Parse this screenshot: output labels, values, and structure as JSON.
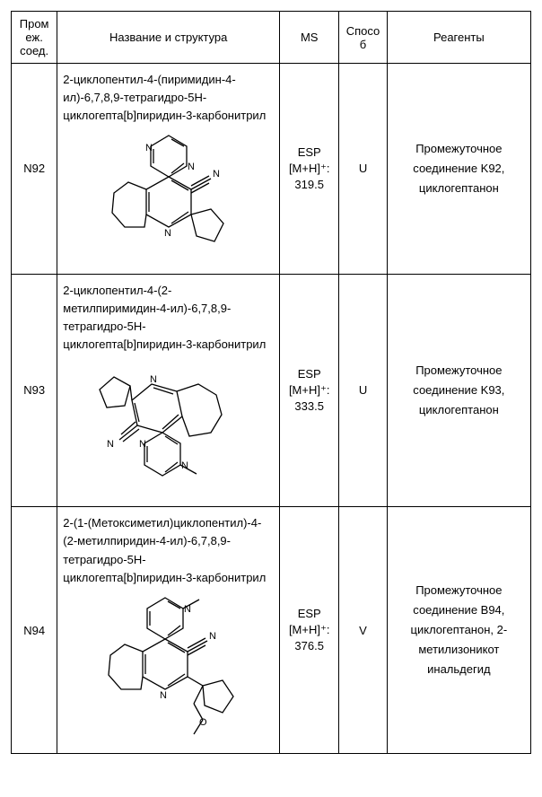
{
  "header": {
    "id": "Пром\nеж.\nсоед.",
    "name": "Название и структура",
    "ms": "MS",
    "method": "Спосо\nб",
    "reagents": "Реагенты"
  },
  "rows": [
    {
      "id": "N92",
      "name": "2-циклопентил-4-(пиримидин-4-ил)-6,7,8,9-тетрагидро-5H-циклогепта[b]пиридин-3-карбонитрил",
      "ms_label": "ESP",
      "ms_ion": "[M+H]⁺:",
      "ms_value": "319.5",
      "method": "U",
      "reagents": "Промежуточное соединение K92, циклогептанон"
    },
    {
      "id": "N93",
      "name": "2-циклопентил-4-(2-метилпиримидин-4-ил)-6,7,8,9-тетрагидро-5H-циклогепта[b]пиридин-3-карбонитрил",
      "ms_label": "ESP",
      "ms_ion": "[M+H]⁺:",
      "ms_value": "333.5",
      "method": "U",
      "reagents": "Промежуточное соединение K93, циклогептанон"
    },
    {
      "id": "N94",
      "name": "2-(1-(Метоксиметил)циклопентил)-4-(2-метилпиридин-4-ил)-6,7,8,9-тетрагидро-5H-циклогепта[b]пиридин-3-карбонитрил",
      "ms_label": "ESP",
      "ms_ion": "[M+H]⁺:",
      "ms_value": "376.5",
      "method": "V",
      "reagents": "Промежуточное соединение B94, циклогептанон, 2-метилизоникот\nинальдегид"
    }
  ],
  "style": {
    "svg_stroke": "#000000",
    "svg_stroke_width": 1.3,
    "svg_label_font": "11px Arial"
  }
}
